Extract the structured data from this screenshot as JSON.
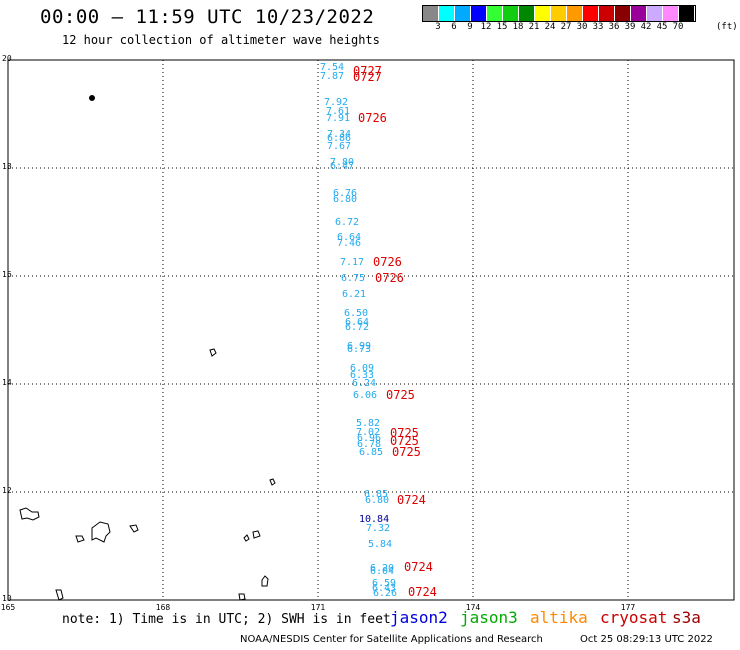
{
  "header": {
    "title": "00:00 – 11:59 UTC 10/23/2022",
    "subtitle": "12 hour collection of altimeter wave heights"
  },
  "legend": {
    "colors": [
      "#888888",
      "#00ffff",
      "#00aaff",
      "#0000ff",
      "#33ff33",
      "#11cc11",
      "#008800",
      "#ffff00",
      "#ffcc00",
      "#ff9900",
      "#ff0000",
      "#cc0000",
      "#880000",
      "#990099",
      "#ccaaff",
      "#ff88ff",
      "#000000"
    ],
    "labels": [
      "3",
      "6",
      "9",
      "12",
      "15",
      "18",
      "21",
      "24",
      "27",
      "30",
      "33",
      "36",
      "39",
      "42",
      "45",
      "70"
    ],
    "unit": "(ft)"
  },
  "axes": {
    "lat_labels": [
      "20",
      "18",
      "16",
      "14",
      "12",
      "10"
    ],
    "lon_labels": [
      "165",
      "168",
      "171",
      "174",
      "177"
    ]
  },
  "wave_heights": [
    {
      "text": "7.54",
      "color": "#22aaee"
    },
    {
      "text": "7.87",
      "color": "#22aaee"
    },
    {
      "text": "7.92",
      "color": "#22aaee"
    },
    {
      "text": "7.61",
      "color": "#22aaee"
    },
    {
      "text": "7.91",
      "color": "#22aaee"
    },
    {
      "text": "7.34",
      "color": "#22aaee"
    },
    {
      "text": "6.86",
      "color": "#22aaee"
    },
    {
      "text": "7.67",
      "color": "#22aaee"
    },
    {
      "text": "7.80",
      "color": "#22aaee"
    },
    {
      "text": "6.47",
      "color": "#22aaee"
    },
    {
      "text": "6.76",
      "color": "#22aaee"
    },
    {
      "text": "6.80",
      "color": "#22aaee"
    },
    {
      "text": "6.72",
      "color": "#22aaee"
    },
    {
      "text": "6.64",
      "color": "#22aaee"
    },
    {
      "text": "7.46",
      "color": "#22aaee"
    },
    {
      "text": "7.17",
      "color": "#22aaee"
    },
    {
      "text": "6.75",
      "color": "#22aaee"
    },
    {
      "text": "6.21",
      "color": "#22aaee"
    },
    {
      "text": "6.50",
      "color": "#22aaee"
    },
    {
      "text": "6.64",
      "color": "#22aaee"
    },
    {
      "text": "6.72",
      "color": "#22aaee"
    },
    {
      "text": "6.99",
      "color": "#22aaee"
    },
    {
      "text": "6.73",
      "color": "#22aaee"
    },
    {
      "text": "6.09",
      "color": "#22aaee"
    },
    {
      "text": "6.33",
      "color": "#22aaee"
    },
    {
      "text": "6.24",
      "color": "#22aaee"
    },
    {
      "text": "6.06",
      "color": "#22aaee"
    },
    {
      "text": "5.82",
      "color": "#22aaee"
    },
    {
      "text": "7.02",
      "color": "#22aaee"
    },
    {
      "text": "6.96",
      "color": "#22aaee"
    },
    {
      "text": "6.78",
      "color": "#22aaee"
    },
    {
      "text": "6.85",
      "color": "#22aaee"
    },
    {
      "text": "6.85",
      "color": "#22aaee"
    },
    {
      "text": "6.80",
      "color": "#22aaee"
    },
    {
      "text": "10.84",
      "color": "#000099"
    },
    {
      "text": "7.32",
      "color": "#22aaee"
    },
    {
      "text": "5.84",
      "color": "#22aaee"
    },
    {
      "text": "6.20",
      "color": "#22aaee"
    },
    {
      "text": "6.04",
      "color": "#22aaee"
    },
    {
      "text": "6.59",
      "color": "#22aaee"
    },
    {
      "text": "6.43",
      "color": "#22aaee"
    },
    {
      "text": "6.26",
      "color": "#22aaee"
    }
  ],
  "time_labels": [
    "0727",
    "0727",
    "0726",
    "0726",
    "0726",
    "0725",
    "0725",
    "0725",
    "0725",
    "0724",
    "0724",
    "0724"
  ],
  "footer": {
    "note": "note:  1) Time is in UTC; 2) SWH is in feet",
    "satellites": [
      {
        "name": "jason2",
        "color": "#0000dd"
      },
      {
        "name": "jason3",
        "color": "#00aa00"
      },
      {
        "name": "altika",
        "color": "#ff8800"
      },
      {
        "name": "cryosat",
        "color": "#cc0000"
      },
      {
        "name": "s3a",
        "color": "#990000"
      }
    ],
    "credit": "NOAA/NESDIS Center for Satellite Applications and Research",
    "timestamp": "Oct 25 08:29:13 UTC 2022"
  }
}
